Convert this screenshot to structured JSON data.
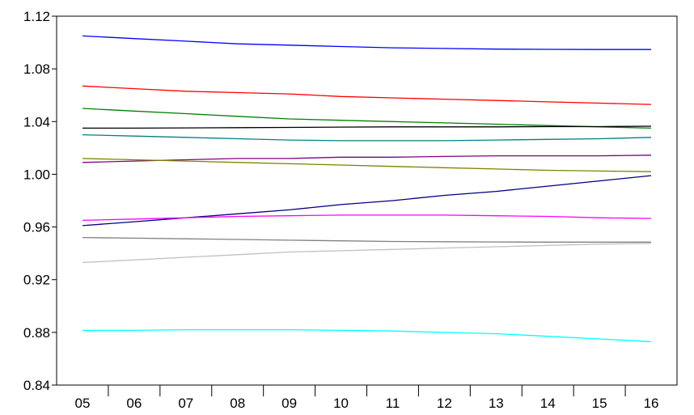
{
  "chart_data": {
    "type": "line",
    "title": "",
    "xlabel": "",
    "ylabel": "",
    "categories": [
      "05",
      "06",
      "07",
      "08",
      "09",
      "10",
      "11",
      "12",
      "13",
      "14",
      "15",
      "16"
    ],
    "ylim": [
      0.84,
      1.12
    ],
    "yticks": [
      "0.84",
      "0.88",
      "0.92",
      "0.96",
      "1.00",
      "1.04",
      "1.08",
      "1.12"
    ],
    "grid": false,
    "legend": "none",
    "series": [
      {
        "color": "#0000ff",
        "values": [
          1.105,
          1.103,
          1.101,
          1.099,
          1.098,
          1.097,
          1.096,
          1.0955,
          1.095,
          1.0948,
          1.0947,
          1.0947
        ]
      },
      {
        "color": "#ff0000",
        "values": [
          1.067,
          1.065,
          1.063,
          1.062,
          1.061,
          1.059,
          1.058,
          1.057,
          1.056,
          1.055,
          1.054,
          1.053
        ]
      },
      {
        "color": "#008000",
        "values": [
          1.05,
          1.048,
          1.046,
          1.044,
          1.042,
          1.041,
          1.04,
          1.039,
          1.038,
          1.037,
          1.036,
          1.035
        ]
      },
      {
        "color": "#000000",
        "values": [
          1.035,
          1.035,
          1.0352,
          1.0354,
          1.0356,
          1.0358,
          1.036,
          1.036,
          1.036,
          1.0362,
          1.0362,
          1.0365
        ]
      },
      {
        "color": "#008080",
        "values": [
          1.03,
          1.029,
          1.028,
          1.027,
          1.026,
          1.0255,
          1.0255,
          1.0255,
          1.026,
          1.0265,
          1.027,
          1.028
        ]
      },
      {
        "color": "#800080",
        "values": [
          1.009,
          1.01,
          1.011,
          1.012,
          1.012,
          1.013,
          1.013,
          1.0135,
          1.014,
          1.014,
          1.014,
          1.0145
        ]
      },
      {
        "color": "#808000",
        "values": [
          1.012,
          1.011,
          1.01,
          1.009,
          1.008,
          1.007,
          1.006,
          1.005,
          1.004,
          1.003,
          1.0025,
          1.002
        ]
      },
      {
        "color": "#000080",
        "values": [
          0.961,
          0.964,
          0.967,
          0.97,
          0.973,
          0.977,
          0.98,
          0.984,
          0.987,
          0.991,
          0.995,
          0.999
        ]
      },
      {
        "color": "#ff00ff",
        "values": [
          0.965,
          0.966,
          0.967,
          0.968,
          0.9685,
          0.969,
          0.969,
          0.969,
          0.9685,
          0.968,
          0.967,
          0.9665
        ]
      },
      {
        "color": "#808080",
        "values": [
          0.952,
          0.9515,
          0.951,
          0.9505,
          0.95,
          0.9495,
          0.949,
          0.9488,
          0.9486,
          0.9485,
          0.9485,
          0.9485
        ]
      },
      {
        "color": "#c0c0c0",
        "values": [
          0.933,
          0.935,
          0.937,
          0.939,
          0.941,
          0.942,
          0.943,
          0.944,
          0.945,
          0.946,
          0.947,
          0.9475
        ]
      },
      {
        "color": "#00ffff",
        "values": [
          0.8815,
          0.8815,
          0.882,
          0.882,
          0.882,
          0.8815,
          0.881,
          0.88,
          0.879,
          0.877,
          0.875,
          0.873
        ]
      }
    ]
  }
}
